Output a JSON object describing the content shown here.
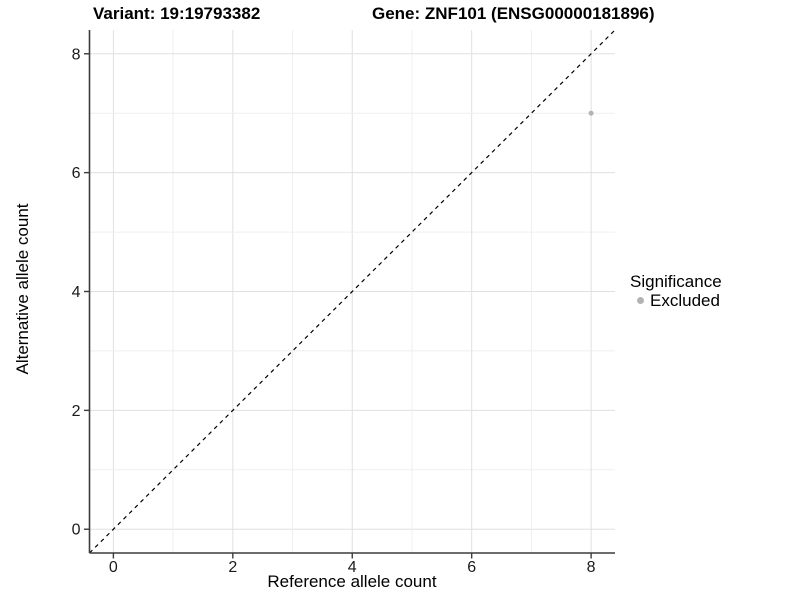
{
  "header": {
    "variant_title": "Variant: 19:19793382",
    "gene_title": "Gene: ZNF101 (ENSG00000181896)"
  },
  "legend": {
    "title": "Significance",
    "items": [
      {
        "label": "Excluded",
        "color": "#b3b3b3"
      }
    ]
  },
  "chart_data": {
    "type": "scatter",
    "title": "Variant: 19:19793382 | Gene: ZNF101 (ENSG00000181896)",
    "xlabel": "Reference allele count",
    "ylabel": "Alternative allele count",
    "xlim": [
      -0.4,
      8.4
    ],
    "ylim": [
      -0.4,
      8.4
    ],
    "x_ticks": [
      0,
      2,
      4,
      6,
      8
    ],
    "y_ticks": [
      0,
      2,
      4,
      6,
      8
    ],
    "grid": "major gridlines at even values, minor gridlines at odd values (1-unit spacing)",
    "legend_position": "right-middle",
    "series": [
      {
        "name": "Excluded",
        "color": "#b3b3b3",
        "point_radius": 2.5,
        "points": [
          {
            "x": 8,
            "y": 7
          }
        ]
      }
    ],
    "reference_line": {
      "type": "identity y=x",
      "linetype": "dashed",
      "color": "#000000"
    },
    "colors": {
      "background": "#ffffff",
      "grid_major": "#e0e0e0",
      "grid_minor": "#efefef",
      "axis_line": "#3c3c3c",
      "tick_label": "#1a1a1a"
    }
  }
}
